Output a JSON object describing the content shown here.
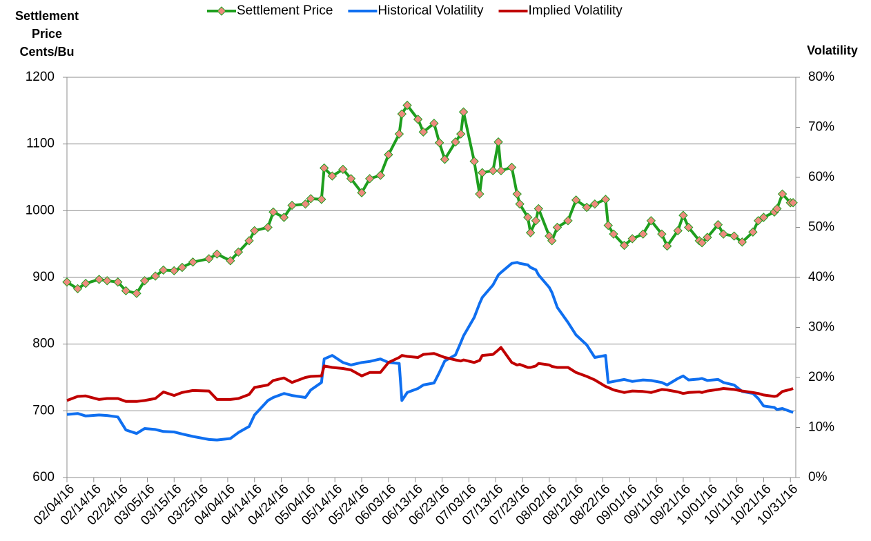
{
  "chart_data": {
    "type": "line",
    "y_label": "Settlement Price Cents/Bu",
    "y2_label": "Volatility",
    "legend": "top",
    "grid": true,
    "xlim": [
      "02/04/16",
      "11/02/16"
    ],
    "xticks": [
      "02/04/16",
      "02/14/16",
      "02/24/16",
      "03/05/16",
      "03/15/16",
      "03/25/16",
      "04/04/16",
      "04/14/16",
      "04/24/16",
      "05/04/16",
      "05/14/16",
      "05/24/16",
      "06/03/16",
      "06/13/16",
      "06/23/16",
      "07/03/16",
      "07/13/16",
      "07/23/16",
      "08/02/16",
      "08/12/16",
      "08/22/16",
      "09/01/16",
      "09/11/16",
      "09/21/16",
      "10/01/16",
      "10/11/16",
      "10/21/16",
      "10/31/16"
    ],
    "ylim": [
      600,
      1200
    ],
    "yticks": [
      600,
      700,
      800,
      900,
      1000,
      1100,
      1200
    ],
    "y2lim": [
      0,
      80
    ],
    "y2ticks": [
      {
        "value": 0,
        "label": "0%"
      },
      {
        "value": 10,
        "label": "10%"
      },
      {
        "value": 20,
        "label": "20%"
      },
      {
        "value": 30,
        "label": "30%"
      },
      {
        "value": 40,
        "label": "40%"
      },
      {
        "value": 50,
        "label": "50%"
      },
      {
        "value": 60,
        "label": "60%"
      },
      {
        "value": 70,
        "label": "70%"
      },
      {
        "value": 80,
        "label": "80%"
      }
    ],
    "x": [
      "02/04/16",
      "02/08/16",
      "02/11/16",
      "02/16/16",
      "02/19/16",
      "02/23/16",
      "02/26/16",
      "03/01/16",
      "03/04/16",
      "03/08/16",
      "03/11/16",
      "03/15/16",
      "03/18/16",
      "03/22/16",
      "03/28/16",
      "03/31/16",
      "04/05/16",
      "04/08/16",
      "04/12/16",
      "04/14/16",
      "04/19/16",
      "04/21/16",
      "04/25/16",
      "04/28/16",
      "05/03/16",
      "05/05/16",
      "05/09/16",
      "05/10/16",
      "05/13/16",
      "05/17/16",
      "05/20/16",
      "05/24/16",
      "05/27/16",
      "05/31/16",
      "06/03/16",
      "06/07/16",
      "06/08/16",
      "06/10/16",
      "06/14/16",
      "06/16/16",
      "06/20/16",
      "06/22/16",
      "06/24/16",
      "06/28/16",
      "06/30/16",
      "07/01/16",
      "07/05/16",
      "07/07/16",
      "07/08/16",
      "07/12/16",
      "07/14/16",
      "07/15/16",
      "07/19/16",
      "07/21/16",
      "07/22/16",
      "07/25/16",
      "07/26/16",
      "07/28/16",
      "07/29/16",
      "08/02/16",
      "08/03/16",
      "08/05/16",
      "08/09/16",
      "08/12/16",
      "08/16/16",
      "08/19/16",
      "08/23/16",
      "08/24/16",
      "08/26/16",
      "08/30/16",
      "09/02/16",
      "09/06/16",
      "09/09/16",
      "09/13/16",
      "09/15/16",
      "09/19/16",
      "09/21/16",
      "09/23/16",
      "09/27/16",
      "09/28/16",
      "09/30/16",
      "10/04/16",
      "10/06/16",
      "10/10/16",
      "10/13/16",
      "10/17/16",
      "10/19/16",
      "10/21/16",
      "10/25/16",
      "10/26/16",
      "10/28/16",
      "10/31/16",
      "11/01/16"
    ],
    "series": [
      {
        "name": "Settlement Price",
        "color": "#1e9e1e",
        "marker": "diamond",
        "marker_color": "#ee8a7e",
        "values": [
          893,
          883,
          891,
          897,
          895,
          893,
          880,
          876,
          895,
          902,
          911,
          910,
          915,
          923,
          928,
          935,
          925,
          938,
          955,
          970,
          975,
          998,
          990,
          1008,
          1010,
          1018,
          1017,
          1064,
          1052,
          1062,
          1048,
          1027,
          1048,
          1053,
          1084,
          1115,
          1145,
          1158,
          1137,
          1118,
          1131,
          1102,
          1077,
          1103,
          1115,
          1148,
          1074,
          1025,
          1057,
          1060,
          1103,
          1060,
          1065,
          1025,
          1010,
          990,
          967,
          985,
          1003,
          962,
          955,
          975,
          985,
          1016,
          1005,
          1010,
          1017,
          978,
          965,
          948,
          958,
          965,
          985,
          965,
          947,
          970,
          993,
          975,
          955,
          952,
          960,
          979,
          965,
          962,
          953,
          968,
          985,
          990,
          998,
          1003,
          1025,
          1012,
          1012
        ]
      },
      {
        "name": "Historical Volatility",
        "color": "#0f6ff0",
        "axis": "y2",
        "values": [
          12.6,
          12.8,
          12.3,
          12.5,
          12.4,
          12.1,
          9.5,
          8.8,
          9.8,
          9.6,
          9.2,
          9.1,
          8.7,
          8.2,
          7.6,
          7.5,
          7.8,
          9.0,
          10.2,
          12.5,
          15.4,
          16.0,
          16.8,
          16.4,
          16.0,
          17.5,
          19.0,
          23.7,
          24.4,
          23.0,
          22.5,
          23.0,
          23.2,
          23.7,
          23.0,
          22.8,
          15.4,
          17.0,
          17.8,
          18.5,
          18.9,
          21.0,
          23.3,
          24.5,
          27.0,
          28.3,
          32.0,
          34.8,
          36.0,
          38.5,
          40.5,
          41.0,
          42.8,
          43.0,
          42.8,
          42.5,
          42.0,
          41.5,
          40.5,
          38.0,
          37.0,
          34.0,
          31.0,
          28.5,
          26.5,
          24.0,
          24.4,
          19.0,
          19.2,
          19.6,
          19.2,
          19.5,
          19.4,
          19.0,
          18.5,
          19.8,
          20.3,
          19.5,
          19.7,
          19.8,
          19.4,
          19.6,
          19.0,
          18.5,
          17.2,
          16.8,
          15.8,
          14.3,
          14.0,
          13.6,
          13.8,
          13.2,
          13.0
        ]
      },
      {
        "name": "Implied Volatility",
        "color": "#c00000",
        "axis": "y2",
        "values": [
          15.4,
          16.2,
          16.3,
          15.6,
          15.8,
          15.8,
          15.2,
          15.2,
          15.4,
          15.8,
          17.1,
          16.4,
          17.0,
          17.4,
          17.3,
          15.6,
          15.6,
          15.8,
          16.6,
          18.0,
          18.5,
          19.4,
          19.9,
          19.0,
          20.0,
          20.2,
          20.3,
          22.3,
          22.0,
          21.8,
          21.5,
          20.3,
          21.0,
          21.0,
          23.0,
          24.0,
          24.4,
          24.2,
          24.0,
          24.6,
          24.8,
          24.4,
          24.0,
          23.5,
          23.3,
          23.5,
          23.0,
          23.4,
          24.4,
          24.6,
          25.5,
          26.0,
          23.0,
          22.5,
          22.6,
          22.0,
          22.0,
          22.3,
          22.8,
          22.5,
          22.2,
          22.0,
          22.0,
          21.0,
          20.2,
          19.5,
          18.2,
          18.0,
          17.5,
          17.0,
          17.3,
          17.2,
          17.0,
          17.6,
          17.5,
          17.1,
          16.8,
          17.0,
          17.1,
          17.0,
          17.3,
          17.6,
          17.8,
          17.6,
          17.3,
          17.0,
          16.8,
          16.5,
          16.2,
          16.3,
          17.2,
          17.6,
          17.8
        ]
      }
    ]
  }
}
